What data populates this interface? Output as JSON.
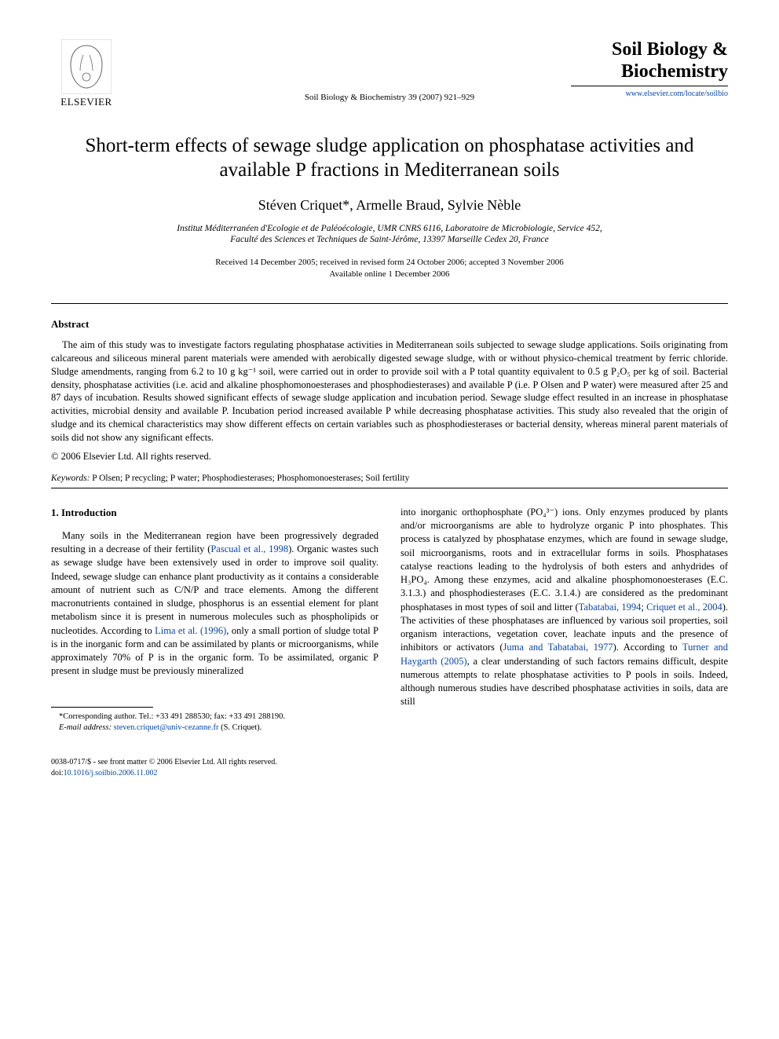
{
  "header": {
    "publisher_name": "ELSEVIER",
    "citation": "Soil Biology & Biochemistry 39 (2007) 921–929",
    "journal_name_line1": "Soil Biology &",
    "journal_name_line2": "Biochemistry",
    "journal_url": "www.elsevier.com/locate/soilbio"
  },
  "title": "Short-term effects of sewage sludge application on phosphatase activities and available P fractions in Mediterranean soils",
  "authors": "Stéven Criquet*, Armelle Braud, Sylvie Nèble",
  "affiliation_line1": "Institut Méditerranéen d'Ecologie et de Paléoécologie, UMR CNRS 6116, Laboratoire de Microbiologie, Service 452,",
  "affiliation_line2": "Faculté des Sciences et Techniques de Saint-Jérôme, 13397 Marseille Cedex 20, France",
  "dates_line1": "Received 14 December 2005; received in revised form 24 October 2006; accepted 3 November 2006",
  "dates_line2": "Available online 1 December 2006",
  "abstract": {
    "label": "Abstract",
    "text": "The aim of this study was to investigate factors regulating phosphatase activities in Mediterranean soils subjected to sewage sludge applications. Soils originating from calcareous and siliceous mineral parent materials were amended with aerobically digested sewage sludge, with or without physico-chemical treatment by ferric chloride. Sludge amendments, ranging from 6.2 to 10 g kg⁻¹ soil, were carried out in order to provide soil with a P total quantity equivalent to 0.5 g P₂O₅ per kg of soil. Bacterial density, phosphatase activities (i.e. acid and alkaline phosphomonoesterases and phosphodiesterases) and available P (i.e. P Olsen and P water) were measured after 25 and 87 days of incubation. Results showed significant effects of sewage sludge application and incubation period. Sewage sludge effect resulted in an increase in phosphatase activities, microbial density and available P. Incubation period increased available P while decreasing phosphatase activities. This study also revealed that the origin of sludge and its chemical characteristics may show different effects on certain variables such as phosphodiesterases or bacterial density, whereas mineral parent materials of soils did not show any significant effects.",
    "copyright": "© 2006 Elsevier Ltd. All rights reserved."
  },
  "keywords": {
    "label": "Keywords:",
    "text": " P Olsen; P recycling; P water; Phosphodiesterases; Phosphomonoesterases; Soil fertility"
  },
  "body": {
    "heading": "1. Introduction",
    "col1": "Many soils in the Mediterranean region have been progressively degraded resulting in a decrease of their fertility (Pascual et al., 1998). Organic wastes such as sewage sludge have been extensively used in order to improve soil quality. Indeed, sewage sludge can enhance plant productivity as it contains a considerable amount of nutrient such as C/N/P and trace elements. Among the different macronutrients contained in sludge, phosphorus is an essential element for plant metabolism since it is present in numerous molecules such as phospholipids or nucleotides. According to Lima et al. (1996), only a small portion of sludge total P is in the inorganic form and can be assimilated by plants or microorganisms, while approximately 70% of P is in the organic form. To be assimilated, organic P present in sludge must be previously mineralized",
    "col2": "into inorganic orthophosphate (PO₄³⁻) ions. Only enzymes produced by plants and/or microorganisms are able to hydrolyze organic P into phosphates. This process is catalyzed by phosphatase enzymes, which are found in sewage sludge, soil microorganisms, roots and in extracellular forms in soils. Phosphatases catalyse reactions leading to the hydrolysis of both esters and anhydrides of H₃PO₄. Among these enzymes, acid and alkaline phosphomonoesterases (E.C. 3.1.3.) and phosphodiesterases (E.C. 3.1.4.) are considered as the predominant phosphatases in most types of soil and litter (Tabatabai, 1994; Criquet et al., 2004). The activities of these phosphatases are influenced by various soil properties, soil organism interactions, vegetation cover, leachate inputs and the presence of inhibitors or activators (Juma and Tabatabai, 1977). According to Turner and Haygarth (2005), a clear understanding of such factors remains difficult, despite numerous attempts to relate phosphatase activities to P pools in soils. Indeed, although numerous studies have described phosphatase activities in soils, data are still"
  },
  "footnote": {
    "corresponding": "*Corresponding author. Tel.: +33 491 288530; fax: +33 491 288190.",
    "email_label": "E-mail address:",
    "email": " steven.criquet@univ-cezanne.fr ",
    "email_suffix": "(S. Criquet)."
  },
  "footer": {
    "issn": "0038-0717/$ - see front matter © 2006 Elsevier Ltd. All rights reserved.",
    "doi_label": "doi:",
    "doi": "10.1016/j.soilbio.2006.11.002"
  },
  "colors": {
    "link": "#0645ad",
    "text": "#000000",
    "background": "#ffffff",
    "logo_orange": "#ff6b00"
  }
}
